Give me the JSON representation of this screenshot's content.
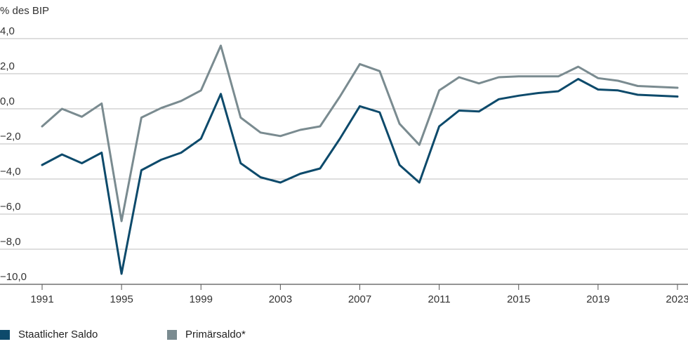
{
  "chart_data": {
    "type": "line",
    "ylabel": "% des BIP",
    "ylim": [
      -10,
      4
    ],
    "yticks": [
      4,
      2,
      0,
      -2,
      -4,
      -6,
      -8,
      -10
    ],
    "ytick_labels": [
      "4,0",
      "2,0",
      "0,0",
      "−2,0",
      "−4,0",
      "−6,0",
      "−8,0",
      "−10,0"
    ],
    "xlim": [
      1991,
      2023
    ],
    "xticks": [
      1991,
      1995,
      1999,
      2003,
      2007,
      2011,
      2015,
      2019,
      2023
    ],
    "xtick_labels": [
      "1991",
      "1995",
      "1999",
      "2003",
      "2007",
      "2011",
      "2015",
      "2019",
      "2023"
    ],
    "x": [
      1991,
      1992,
      1993,
      1994,
      1995,
      1996,
      1997,
      1998,
      1999,
      2000,
      2001,
      2002,
      2003,
      2004,
      2005,
      2006,
      2007,
      2008,
      2009,
      2010,
      2011,
      2012,
      2013,
      2014,
      2015,
      2016,
      2017,
      2018,
      2019,
      2020,
      2021,
      2022,
      2023
    ],
    "series": [
      {
        "name": "Staatlicher Saldo",
        "color": "#0d4a6b",
        "values": [
          -3.2,
          -2.6,
          -3.1,
          -2.5,
          -9.4,
          -3.5,
          -2.9,
          -2.5,
          -1.7,
          0.85,
          -3.1,
          -3.9,
          -4.2,
          -3.7,
          -3.4,
          -1.7,
          0.15,
          -0.2,
          -3.2,
          -4.2,
          -1.0,
          -0.1,
          -0.15,
          0.55,
          0.75,
          0.9,
          1.0,
          1.7,
          1.1,
          1.05,
          0.8,
          0.75,
          0.7
        ]
      },
      {
        "name": "Primärsaldo*",
        "color": "#7a8b90",
        "values": [
          -1.0,
          0.0,
          -0.45,
          0.3,
          -6.4,
          -0.5,
          0.05,
          0.45,
          1.05,
          3.6,
          -0.5,
          -1.35,
          -1.55,
          -1.2,
          -1.0,
          0.7,
          2.55,
          2.15,
          -0.85,
          -2.05,
          1.05,
          1.8,
          1.45,
          1.8,
          1.85,
          1.85,
          1.85,
          2.4,
          1.75,
          1.6,
          1.3,
          1.25,
          1.2
        ]
      }
    ],
    "legend": "bottom-left",
    "grid": true
  }
}
